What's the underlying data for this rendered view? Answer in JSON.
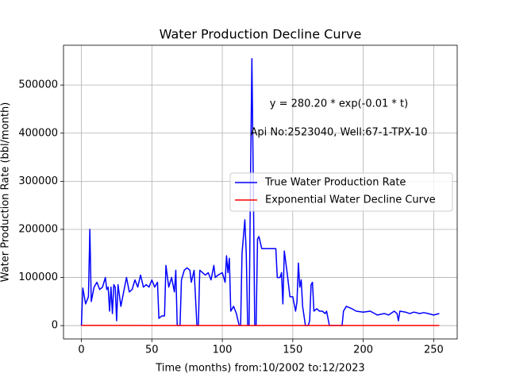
{
  "chart_data": {
    "type": "line",
    "title": "Water Production Decline Curve",
    "x_label": "Time (months) from:10/2002 to:12/2023",
    "y_label": "Water Production Rate (bbl/month)",
    "annotations": [
      "y = 280.20 * exp(-0.01 * t)",
      "Api No:2523040, Well:67-1-TPX-10"
    ],
    "xlim": [
      -12.7,
      266.7
    ],
    "ylim": [
      -27750,
      582750
    ],
    "xticks": [
      0,
      50,
      100,
      150,
      200,
      250
    ],
    "yticks": [
      0,
      100000,
      200000,
      300000,
      400000,
      500000
    ],
    "grid": true,
    "legend": "center right",
    "series": [
      {
        "name": "True Water Production Rate",
        "color": "#0000ff",
        "x": [
          0,
          1,
          3,
          5,
          6,
          7,
          9,
          11,
          13,
          15,
          17,
          18,
          19,
          20,
          21,
          22,
          23,
          24,
          25,
          26,
          28,
          30,
          32,
          34,
          36,
          38,
          40,
          42,
          44,
          46,
          48,
          50,
          52,
          54,
          55,
          57,
          59,
          60,
          62,
          64,
          66,
          67,
          68,
          70,
          71,
          73,
          75,
          77,
          78,
          80,
          82,
          83,
          84,
          86,
          88,
          90,
          92,
          94,
          95,
          97,
          100,
          102,
          103,
          104,
          105,
          106,
          108,
          110,
          112,
          113,
          114,
          116,
          117,
          118,
          119,
          120,
          121,
          122,
          123,
          124,
          125,
          126,
          128,
          130,
          138,
          139,
          141,
          142,
          143,
          144,
          146,
          148,
          150,
          152,
          153,
          154,
          155,
          156,
          157,
          159,
          161,
          162,
          163,
          164,
          165,
          167,
          169,
          171,
          173,
          174,
          176,
          185,
          186,
          188,
          192,
          195,
          200,
          205,
          210,
          215,
          218,
          222,
          224,
          225,
          226,
          230,
          233,
          236,
          240,
          243,
          246,
          250,
          254
        ],
        "values": [
          0,
          78000,
          45000,
          60000,
          200000,
          50000,
          80000,
          90000,
          75000,
          80000,
          100000,
          75000,
          80000,
          30000,
          80000,
          25000,
          85000,
          80000,
          10000,
          85000,
          40000,
          70000,
          100000,
          70000,
          75000,
          95000,
          80000,
          105000,
          80000,
          85000,
          80000,
          95000,
          80000,
          90000,
          15000,
          20000,
          20000,
          125000,
          80000,
          100000,
          70000,
          115000,
          0,
          0,
          95000,
          115000,
          120000,
          115000,
          90000,
          115000,
          0,
          0,
          115000,
          110000,
          105000,
          110000,
          95000,
          125000,
          100000,
          105000,
          110000,
          90000,
          145000,
          110000,
          140000,
          30000,
          40000,
          25000,
          0,
          0,
          150000,
          220000,
          150000,
          0,
          0,
          300000,
          555000,
          300000,
          0,
          0,
          180000,
          185000,
          160000,
          160000,
          160000,
          100000,
          100000,
          110000,
          45000,
          155000,
          110000,
          60000,
          60000,
          30000,
          50000,
          130000,
          80000,
          95000,
          40000,
          0,
          0,
          10000,
          85000,
          90000,
          30000,
          35000,
          30000,
          30000,
          25000,
          30000,
          0,
          0,
          30000,
          40000,
          35000,
          30000,
          28000,
          30000,
          22000,
          25000,
          22000,
          30000,
          25000,
          10000,
          30000,
          28000,
          25000,
          28000,
          25000,
          27000,
          25000,
          22000,
          25000
        ]
      },
      {
        "name": "Exponential Water Decline Curve",
        "color": "#ff0000",
        "x": [
          0,
          50,
          100,
          150,
          200,
          254
        ],
        "values": [
          280.2,
          169.95,
          103.08,
          62.52,
          37.92,
          22.1
        ]
      }
    ]
  }
}
